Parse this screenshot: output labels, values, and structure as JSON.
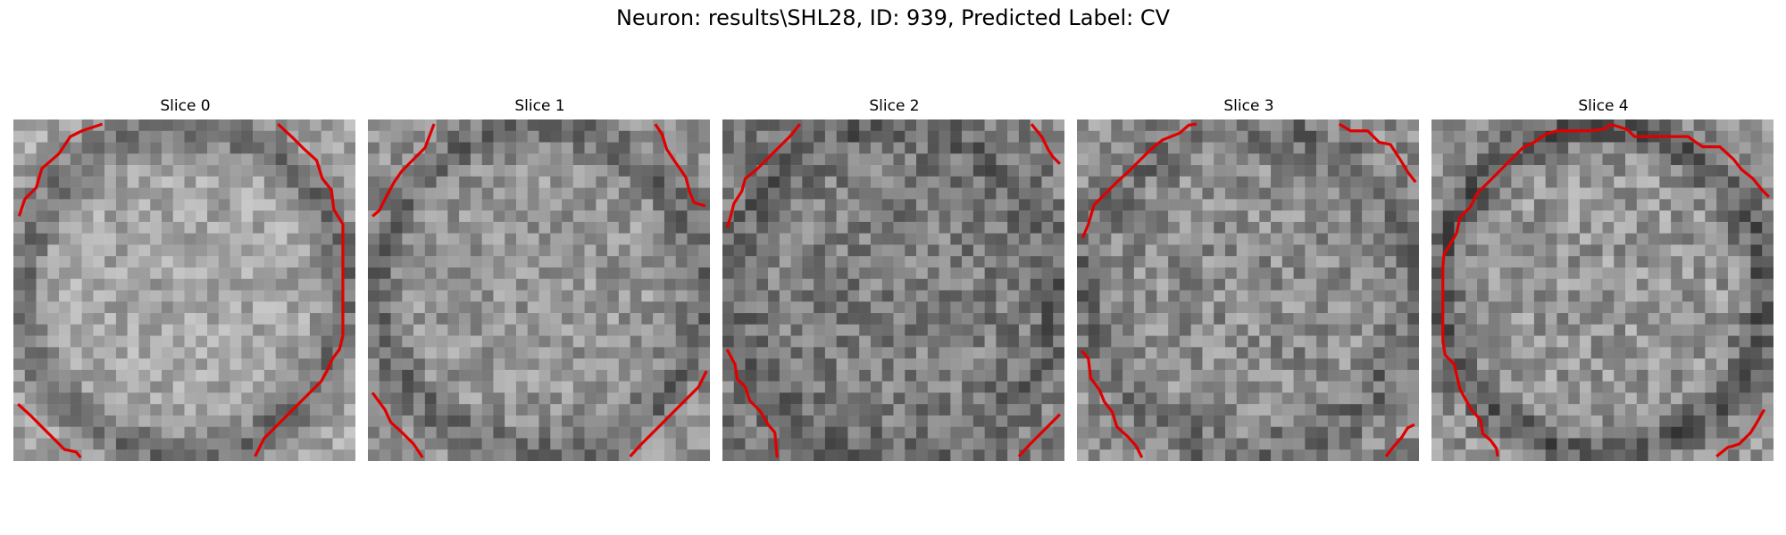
{
  "figure": {
    "title": "Neuron: results\\SHL28, ID: 939, Predicted Label: CV"
  },
  "colors": {
    "contour": "#e00000",
    "background": "#ffffff"
  },
  "panels": [
    {
      "title": "Slice 0"
    },
    {
      "title": "Slice 1"
    },
    {
      "title": "Slice 2"
    },
    {
      "title": "Slice 3"
    },
    {
      "title": "Slice 4"
    }
  ]
}
